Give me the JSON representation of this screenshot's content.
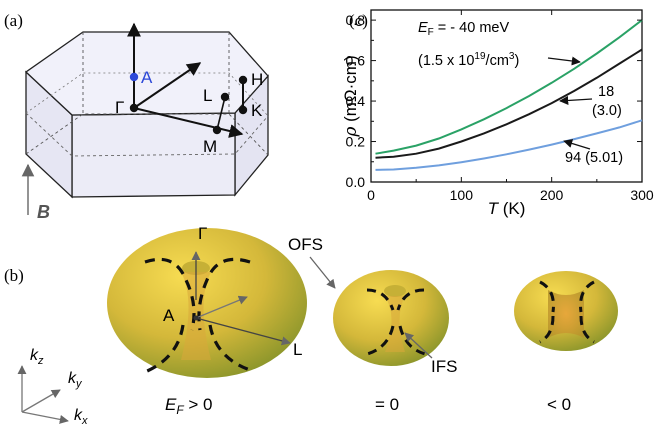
{
  "panels": {
    "a": {
      "label": "(a)",
      "points": {
        "A": "A",
        "Gamma": "Γ",
        "H": "H",
        "L": "L",
        "K": "K",
        "M": "M"
      },
      "field": "B",
      "colors": {
        "face": "#eeeef8",
        "edge": "#222222",
        "point_A": "#2c48d8"
      }
    },
    "b": {
      "label": "(b)",
      "annotations": {
        "gamma": "Γ",
        "A": "A",
        "L": "L",
        "ofs": "OFS",
        "ifs": "IFS"
      },
      "case_labels": {
        "positive_pre": "E",
        "positive_sub": "F",
        "positive_post": " > 0",
        "zero": "= 0",
        "negative": "< 0"
      },
      "axes": {
        "kz": "k",
        "kz_sub": "z",
        "ky": "k",
        "ky_sub": "y",
        "kx": "k",
        "kx_sub": "x"
      },
      "colors": {
        "surface_light": "#f2d24a",
        "surface_mid": "#c9b339",
        "surface_dark": "#7f8f24",
        "dash": "#111111"
      }
    },
    "c": {
      "label": "(c)",
      "annotation_ef_pre": "E",
      "annotation_ef_sub": "F",
      "annotation_ef_post": " = - 40 meV",
      "annotation_density_pre": "(1.5 x 10",
      "annotation_density_sup": "19",
      "annotation_density_mid": "/cm",
      "annotation_density_sup2": "3",
      "annotation_density_post": ")",
      "label_black_1": "18",
      "label_black_2": "(3.0)",
      "label_blue": "94 (5.01)"
    }
  },
  "chart_data": {
    "type": "line",
    "xlabel_var": "T",
    "xlabel_unit": " (K)",
    "ylabel_var": "ρ",
    "ylabel_unit": " (mΩ·cm)",
    "xlim": [
      0,
      300
    ],
    "ylim": [
      0,
      0.85
    ],
    "xticks": [
      "0",
      "100",
      "200",
      "300"
    ],
    "yticks": [
      "0.0",
      "0.2",
      "0.4",
      "0.6",
      "0.8"
    ],
    "grid": false,
    "series": [
      {
        "color": "#2aa266",
        "x": [
          5,
          25,
          50,
          75,
          100,
          125,
          150,
          175,
          200,
          225,
          250,
          275,
          300
        ],
        "y": [
          0.14,
          0.155,
          0.18,
          0.215,
          0.26,
          0.31,
          0.365,
          0.425,
          0.49,
          0.56,
          0.635,
          0.715,
          0.8
        ]
      },
      {
        "color": "#1a1a1a",
        "x": [
          5,
          25,
          50,
          75,
          100,
          125,
          150,
          175,
          200,
          225,
          250,
          275,
          300
        ],
        "y": [
          0.12,
          0.125,
          0.14,
          0.165,
          0.2,
          0.24,
          0.285,
          0.335,
          0.39,
          0.45,
          0.515,
          0.585,
          0.655
        ]
      },
      {
        "color": "#6f9fde",
        "x": [
          5,
          25,
          50,
          75,
          100,
          125,
          150,
          175,
          200,
          225,
          250,
          275,
          300
        ],
        "y": [
          0.06,
          0.062,
          0.07,
          0.082,
          0.098,
          0.116,
          0.137,
          0.16,
          0.185,
          0.212,
          0.24,
          0.27,
          0.305
        ]
      }
    ]
  }
}
